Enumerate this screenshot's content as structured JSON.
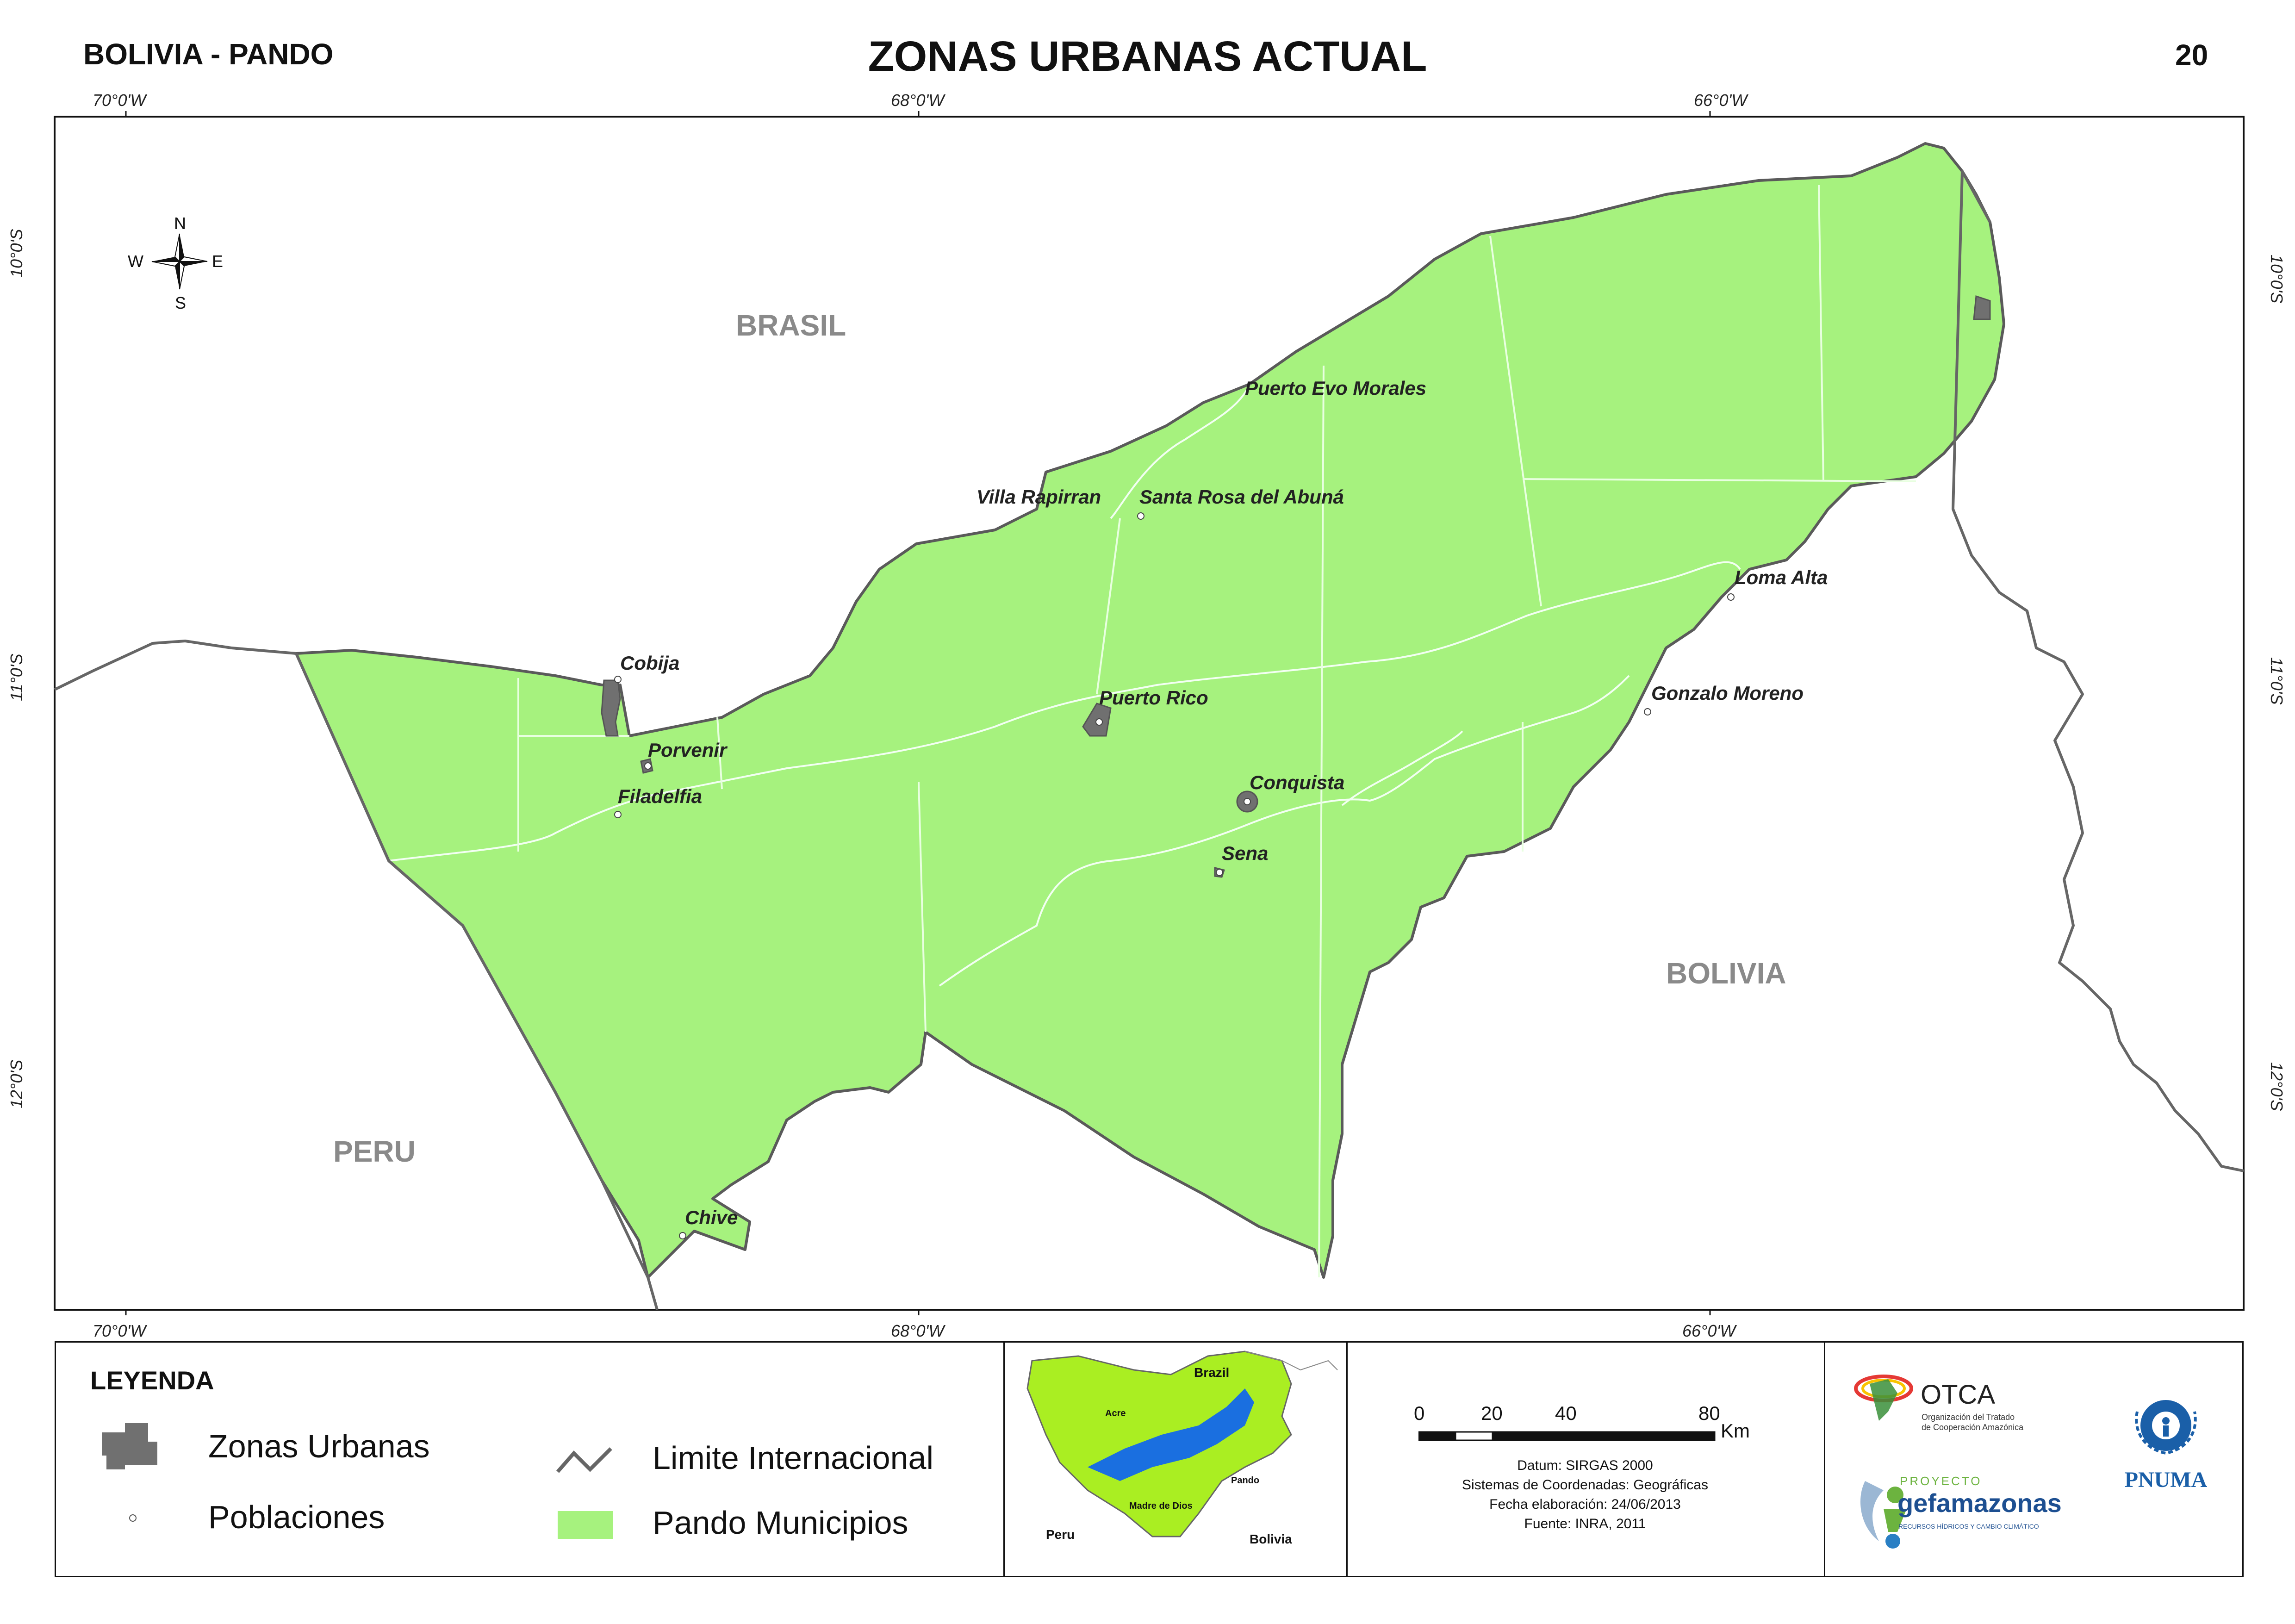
{
  "header": {
    "region": "BOLIVIA - PANDO",
    "title": "ZONAS URBANAS ACTUAL",
    "page_number": "20"
  },
  "graticule": {
    "lon_labels": [
      "70°0'W",
      "68°0'W",
      "66°0'W"
    ],
    "lat_labels": [
      "10°0'S",
      "11°0'S",
      "12°0'S"
    ]
  },
  "compass": {
    "n": "N",
    "s": "S",
    "e": "E",
    "w": "W"
  },
  "countries": {
    "brasil": "BRASIL",
    "peru": "PERU",
    "bolivia": "BOLIVIA"
  },
  "places": {
    "puerto_evo_morales": "Puerto Evo Morales",
    "villa_rapirran": "Villa Rapirran",
    "santa_rosa": "Santa Rosa del Abuná",
    "loma_alta": "Loma Alta",
    "cobija": "Cobija",
    "puerto_rico": "Puerto Rico",
    "gonzalo_moreno": "Gonzalo Moreno",
    "porvenir": "Porvenir",
    "conquista": "Conquista",
    "filadelfia": "Filadelfia",
    "sena": "Sena",
    "chive": "Chive"
  },
  "legend": {
    "title": "LEYENDA",
    "zonas_urbanas": "Zonas Urbanas",
    "poblaciones": "Poblaciones",
    "limite": "Limite Internacional",
    "municipios": "Pando Municipios"
  },
  "inset": {
    "brazil": "Brazil",
    "acre": "Acre",
    "madre_de_dios": "Madre de Dios",
    "pando": "Pando",
    "peru": "Peru",
    "bolivia": "Bolivia"
  },
  "scale": {
    "ticks": [
      "0",
      "20",
      "40",
      "80"
    ],
    "unit": "Km"
  },
  "metadata": {
    "datum": "Datum: SIRGAS 2000",
    "coords": "Sistemas de Coordenadas: Geográficas",
    "fecha": "Fecha elaboración: 24/06/2013",
    "fuente": "Fuente: INRA, 2011"
  },
  "logos": {
    "otca": "OTCA",
    "otca_sub1": "Organización del Tratado",
    "otca_sub2": "de Cooperación Amazónica",
    "proyecto": "PROYECTO",
    "gef": "gefamazonas",
    "gef_sub": "RECURSOS HÍDRICOS Y CAMBIO CLIMÁTICO",
    "pnuma": "PNUMA"
  },
  "colors": {
    "municipios_fill": "#a6f27e",
    "urban_fill": "#707070",
    "border": "#666666",
    "country_label": "#8a8a8a",
    "inset_bg_country": "#aaee22",
    "inset_pando": "#1a6fe0"
  }
}
